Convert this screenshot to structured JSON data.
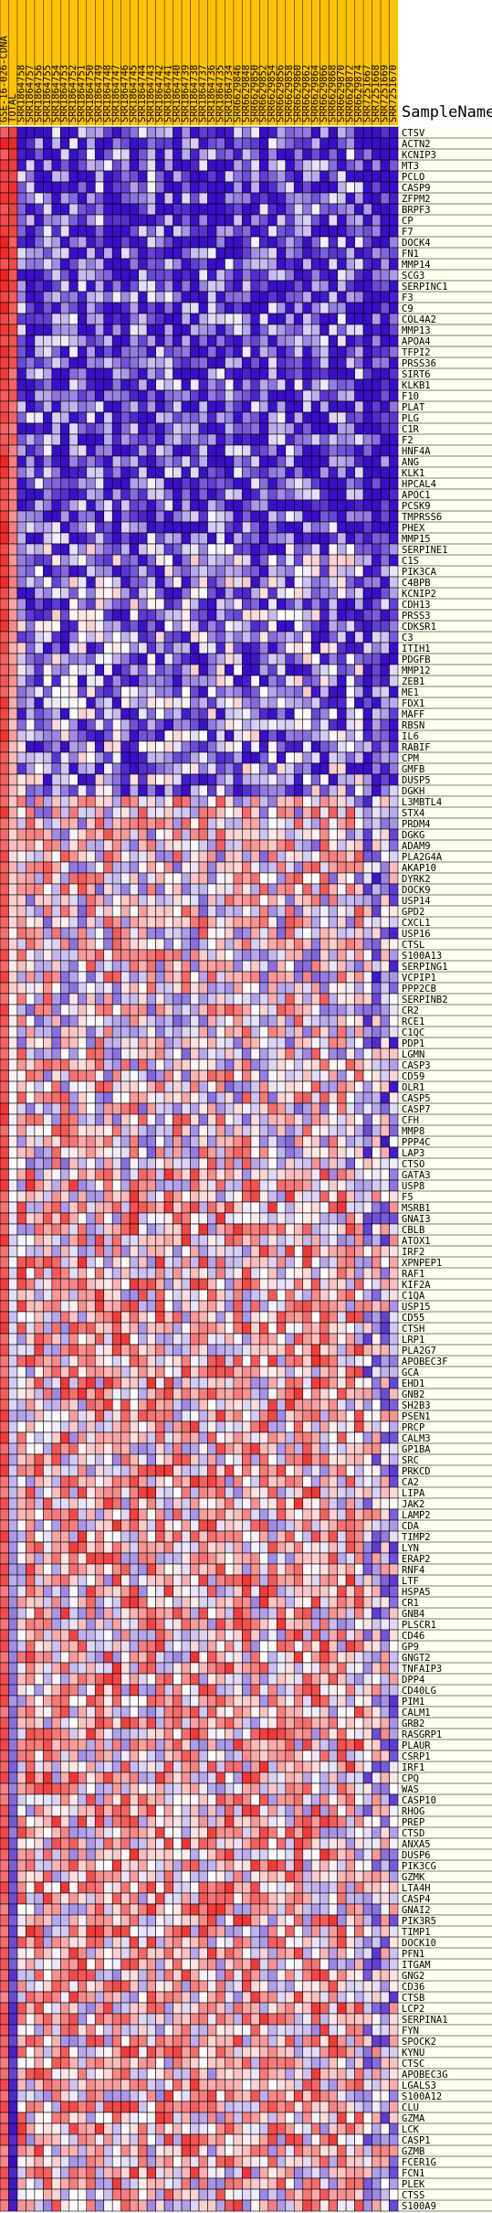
{
  "chart_data": {
    "type": "heatmap",
    "title": "",
    "row_header": "SampleName",
    "columns": [
      "GSE-16-026-CDNA",
      "TOTAL",
      "SRR1864758",
      "SRR1864757",
      "SRR1864756",
      "SRR1864755",
      "SRR1864754",
      "SRR1864753",
      "SRR1864752",
      "SRR1864751",
      "SRR1864750",
      "SRR1864749",
      "SRR1864748",
      "SRR1864747",
      "SRR1864746",
      "SRR1864745",
      "SRR1864744",
      "SRR1864743",
      "SRR1864742",
      "SRR1864741",
      "SRR1864740",
      "SRR1864739",
      "SRR1864738",
      "SRR1864737",
      "SRR1864736",
      "SRR1864735",
      "SRR1864734",
      "SRR6629846",
      "SRR6629848",
      "SRR6629850",
      "SRR6629852",
      "SRR6629854",
      "SRR6629856",
      "SRR6629858",
      "SRR6629860",
      "SRR6629862",
      "SRR6629864",
      "SRR6629866",
      "SRR6629868",
      "SRR6629870",
      "SRR6629872",
      "SRR6629874",
      "SRR7251667",
      "SRR7251668",
      "SRR7251669",
      "SRR7251670"
    ],
    "rows": [
      "CTSV",
      "ACTN2",
      "KCNIP3",
      "MT3",
      "PCLO",
      "CASP9",
      "ZFPM2",
      "BRPF3",
      "CP",
      "F7",
      "DOCK4",
      "FN1",
      "MMP14",
      "SCG3",
      "SERPINC1",
      "F3",
      "C9",
      "COL4A2",
      "MMP13",
      "APOA4",
      "TFPI2",
      "PRSS36",
      "SIRT6",
      "KLKB1",
      "F10",
      "PLAT",
      "PLG",
      "C1R",
      "F2",
      "HNF4A",
      "ANG",
      "KLK1",
      "HPCAL4",
      "APOC1",
      "PCSK9",
      "TMPRSS6",
      "PHEX",
      "MMP15",
      "SERPINE1",
      "C1S",
      "PIK3CA",
      "C4BPB",
      "KCNIP2",
      "CDH13",
      "PRSS3",
      "CDKSR1",
      "C3",
      "ITIH1",
      "PDGFB",
      "MMP12",
      "ZEB1",
      "ME1",
      "FDX1",
      "MAFF",
      "RBSN",
      "IL6",
      "RABIF",
      "CPM",
      "GMFB",
      "DUSP5",
      "DGKH",
      "L3MBTL4",
      "STX4",
      "PRDM4",
      "DGKG",
      "ADAM9",
      "PLA2G4A",
      "AKAP10",
      "DYRK2",
      "DOCK9",
      "USP14",
      "GPD2",
      "CXCL1",
      "USP16",
      "CTSL",
      "S100A13",
      "SERPING1",
      "VCPIP1",
      "PPP2CB",
      "SERPINB2",
      "CR2",
      "RCE1",
      "C1QC",
      "PDP1",
      "LGMN",
      "CASP3",
      "CD59",
      "OLR1",
      "CASP5",
      "CASP7",
      "CFH",
      "MMP8",
      "PPP4C",
      "LAP3",
      "CTSO",
      "GATA3",
      "USP8",
      "F5",
      "MSRB1",
      "GNAI3",
      "CBLB",
      "ATOX1",
      "IRF2",
      "XPNPEP1",
      "RAF1",
      "KIF2A",
      "C1QA",
      "USP15",
      "CD55",
      "CTSH",
      "LRP1",
      "PLA2G7",
      "APOBEC3F",
      "GCA",
      "EHD1",
      "GNB2",
      "SH2B3",
      "PSEN1",
      "PRCP",
      "CALM3",
      "GP1BA",
      "SRC",
      "PRKCD",
      "CA2",
      "LIPA",
      "JAK2",
      "LAMP2",
      "CDA",
      "TIMP2",
      "LYN",
      "ERAP2",
      "RNF4",
      "LTF",
      "HSPA5",
      "CR1",
      "GNB4",
      "PLSCR1",
      "CD46",
      "GP9",
      "GNGT2",
      "TNFAIP3",
      "DPP4",
      "CD40LG",
      "PIM1",
      "CALM1",
      "GRB2",
      "RASGRP1",
      "PLAUR",
      "CSRP1",
      "IRF1",
      "CPQ",
      "WAS",
      "CASP10",
      "RHOG",
      "PREP",
      "CTSD",
      "ANXA5",
      "DUSP6",
      "PIK3CG",
      "GZMK",
      "LTA4H",
      "CASP4",
      "GNAI2",
      "PIK3R5",
      "TIMP1",
      "DOCK10",
      "PFN1",
      "ITGAM",
      "GNG2",
      "CD36",
      "CTSB",
      "LCP2",
      "SERPINA1",
      "FYN",
      "SPOCK2",
      "KYNU",
      "CTSC",
      "APOBEC3G",
      "LGALS3",
      "S100A12",
      "CLU",
      "GZMA",
      "LCK",
      "CASP1",
      "GZMB",
      "FCER1G",
      "FCN1",
      "PLEK",
      "CTSS",
      "S100A9"
    ],
    "value_range": [
      -1,
      1
    ],
    "color_scale": {
      "low": "#3a0fc8",
      "mid": "#ffffff",
      "high": "#ee1c1c"
    },
    "label_colors": {
      "header_band": "#ffc200",
      "label_column": "#fffff0"
    },
    "grid": true
  }
}
